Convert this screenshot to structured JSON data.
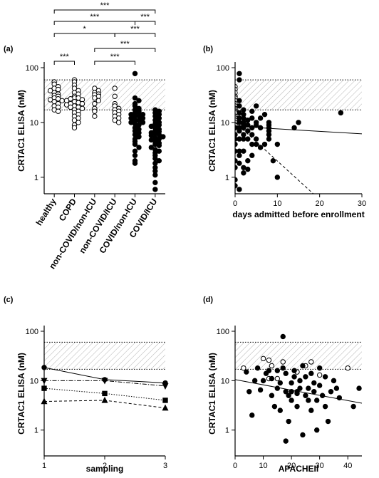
{
  "chart_data": [
    {
      "type": "strip",
      "panel_label": "(a)",
      "y_label": "CRTAC1 ELISA (nM)",
      "log_y": true,
      "ylim": [
        0.5,
        100
      ],
      "yticks": [
        1,
        10,
        100
      ],
      "reference_band": [
        17,
        60
      ],
      "categories": [
        "healthy",
        "COPD",
        "non-COVID/non-ICU",
        "non-COVID/ICU",
        "COVID/non-ICU",
        "COVID/ICU"
      ],
      "markers": [
        "open",
        "open",
        "open",
        "open",
        "filled",
        "filled"
      ],
      "values": [
        [
          55,
          50,
          45,
          42,
          40,
          38,
          35,
          33,
          31,
          30,
          28,
          27,
          26,
          25,
          24,
          22,
          20,
          19,
          17,
          16
        ],
        [
          60,
          55,
          48,
          42,
          38,
          35,
          33,
          30,
          28,
          28,
          27,
          26,
          25,
          24,
          23,
          22,
          22,
          21,
          20,
          19,
          19,
          18,
          17,
          16,
          15,
          14,
          13,
          12,
          11,
          10,
          9,
          8
        ],
        [
          42,
          38,
          35,
          33,
          32,
          30,
          28,
          25,
          22,
          18,
          16,
          13
        ],
        [
          42,
          30,
          22,
          20,
          18,
          17,
          16,
          15,
          14,
          13,
          12,
          11,
          10
        ],
        [
          78,
          28,
          25,
          22,
          20,
          18,
          17,
          16,
          15,
          15,
          14,
          14,
          13,
          13,
          12,
          12,
          11,
          11,
          10,
          10,
          9.5,
          9,
          8,
          7.5,
          7,
          6.5,
          6,
          5.5,
          5,
          4.5,
          4,
          3.5,
          3,
          2.5,
          2,
          1.8
        ],
        [
          17,
          16,
          15,
          14,
          13,
          12,
          11,
          10,
          9.5,
          9,
          8.5,
          8,
          7.5,
          7,
          6.8,
          6.5,
          6.2,
          6,
          5.8,
          5.5,
          5.2,
          5,
          4.8,
          4.5,
          4.2,
          4,
          3.8,
          3.5,
          3.2,
          3,
          2.8,
          2.5,
          2.2,
          2,
          1.8,
          1.5,
          1.3,
          1.1,
          0.8,
          0.6
        ]
      ],
      "comparisons": [
        {
          "groups": [
            "healthy",
            "COVID/ICU"
          ],
          "label": "***"
        },
        {
          "groups": [
            "healthy",
            "COVID/non-ICU"
          ],
          "label": "***"
        },
        {
          "groups": [
            "COVID/non-ICU",
            "COVID/ICU"
          ],
          "label": "***"
        },
        {
          "groups": [
            "healthy",
            "non-COVID/ICU"
          ],
          "label": "*"
        },
        {
          "groups": [
            "non-COVID/ICU",
            "COVID/ICU"
          ],
          "label": "***"
        },
        {
          "groups": [
            "non-COVID/non-ICU",
            "COVID/ICU"
          ],
          "label": "***"
        },
        {
          "groups": [
            "non-COVID/non-ICU",
            "COVID/non-ICU"
          ],
          "label": "***"
        },
        {
          "groups": [
            "healthy",
            "COPD"
          ],
          "label": "***"
        }
      ]
    },
    {
      "type": "scatter",
      "panel_label": "(b)",
      "y_label": "CRTAC1 ELISA (nM)",
      "x_label": "days admitted before enrollment",
      "log_y": true,
      "ylim": [
        0.5,
        100
      ],
      "yticks": [
        1,
        10,
        100
      ],
      "xlim": [
        0,
        30
      ],
      "xticks": [
        0,
        10,
        20,
        30
      ],
      "reference_band": [
        17,
        60
      ],
      "series": [
        {
          "marker": "open",
          "x": [
            0,
            0,
            0,
            0,
            0,
            0,
            0,
            0,
            0,
            0,
            0,
            0,
            0,
            0,
            0,
            0,
            0
          ],
          "values": [
            45,
            40,
            35,
            30,
            28,
            25,
            22,
            20,
            18,
            17,
            16,
            15,
            13,
            12,
            11,
            10,
            9
          ]
        },
        {
          "marker": "filled",
          "x": [
            0,
            0,
            0,
            0,
            0,
            0,
            0,
            0,
            0,
            1,
            1,
            1,
            1,
            1,
            1,
            1,
            1,
            1,
            1,
            1,
            1,
            1,
            1,
            2,
            2,
            2,
            2,
            2,
            2,
            2,
            2,
            2,
            2,
            2,
            3,
            3,
            3,
            3,
            3,
            3,
            4,
            4,
            4,
            4,
            4,
            4,
            5,
            5,
            5,
            5,
            5,
            6,
            6,
            6,
            7,
            7,
            8,
            8,
            8,
            8,
            8,
            8,
            9,
            10,
            10,
            14,
            15,
            25
          ],
          "values": [
            8,
            6,
            5,
            4,
            3,
            2,
            1.5,
            0.7,
            0.9,
            78,
            60,
            25,
            20,
            15,
            12,
            10,
            8,
            7,
            5,
            3,
            2.5,
            1.8,
            0.6,
            17,
            14,
            12,
            10,
            9,
            8,
            6,
            5,
            3,
            1.5,
            1.2,
            11,
            9,
            7,
            5,
            2,
            1.4,
            16,
            12,
            8,
            6,
            4,
            2.5,
            20,
            10,
            9,
            5,
            4,
            12,
            8,
            3.5,
            14,
            4,
            10,
            9,
            8,
            7,
            6,
            5,
            2,
            4,
            1,
            8,
            10,
            15
          ]
        }
      ],
      "trend_lines": [
        {
          "style": "solid",
          "x": [
            0,
            30
          ],
          "values": [
            8.5,
            6.2
          ]
        },
        {
          "style": "dashed",
          "x": [
            0,
            18.5
          ],
          "values": [
            10,
            0.5
          ]
        }
      ]
    },
    {
      "type": "line",
      "panel_label": "(c)",
      "y_label": "CRTAC1 ELISA (nM)",
      "x_label": "sampling",
      "log_y": true,
      "ylim": [
        0.3,
        100
      ],
      "yticks": [
        1,
        10,
        100
      ],
      "xlim": [
        1,
        3
      ],
      "xticks": [
        1,
        2,
        3
      ],
      "reference_band": [
        17,
        60
      ],
      "x": [
        1,
        2,
        3
      ],
      "series": [
        {
          "marker": "circle",
          "style": "solid",
          "values": [
            18.5,
            10.5,
            9
          ]
        },
        {
          "marker": "triangle-down",
          "style": "dashdot",
          "values": [
            10,
            10,
            7.8
          ]
        },
        {
          "marker": "square",
          "style": "dotted",
          "values": [
            7,
            5.5,
            4
          ]
        },
        {
          "marker": "triangle",
          "style": "dashed",
          "values": [
            3.8,
            4,
            2.8
          ]
        }
      ]
    },
    {
      "type": "scatter",
      "panel_label": "(d)",
      "y_label": "CRTAC1 ELISA (nM)",
      "x_label": "APACHEII",
      "log_y": true,
      "ylim": [
        0.3,
        100
      ],
      "yticks": [
        1,
        10,
        100
      ],
      "xlim": [
        0,
        45
      ],
      "xticks": [
        0,
        10,
        20,
        30,
        40
      ],
      "reference_band": [
        17,
        60
      ],
      "series": [
        {
          "marker": "open",
          "x": [
            3,
            10,
            12,
            13,
            15,
            17,
            22,
            25,
            27,
            30,
            40,
            12
          ],
          "values": [
            18,
            28,
            26,
            20,
            11,
            24,
            15,
            20,
            24,
            13,
            18,
            11
          ]
        },
        {
          "marker": "filled",
          "x": [
            4,
            5,
            6,
            7,
            8,
            9,
            10,
            11,
            12,
            13,
            13,
            14,
            15,
            15,
            16,
            16,
            17,
            17,
            18,
            18,
            19,
            19,
            20,
            20,
            20,
            21,
            21,
            22,
            22,
            23,
            23,
            24,
            24,
            25,
            25,
            26,
            26,
            27,
            27,
            28,
            28,
            29,
            29,
            30,
            30,
            31,
            32,
            32,
            33,
            34,
            35,
            36,
            37,
            42,
            44,
            22,
            18
          ],
          "values": [
            15,
            6,
            2,
            10,
            18,
            6.5,
            10,
            14,
            16,
            11,
            5,
            3,
            16,
            7,
            9,
            2.5,
            18,
            78,
            14,
            0.6,
            5,
            1.5,
            9,
            4,
            6,
            16,
            12,
            5.5,
            3,
            7,
            10,
            20,
            0.8,
            5,
            12,
            4,
            7,
            14,
            2.5,
            6,
            9,
            1,
            4,
            8,
            18,
            5,
            3,
            12,
            1.5,
            6,
            10,
            7,
            4.5,
            3,
            7,
            6,
            6
          ]
        }
      ],
      "trend_lines": [
        {
          "style": "solid",
          "x": [
            0,
            45
          ],
          "values": [
            10.5,
            3.5
          ]
        }
      ]
    }
  ]
}
